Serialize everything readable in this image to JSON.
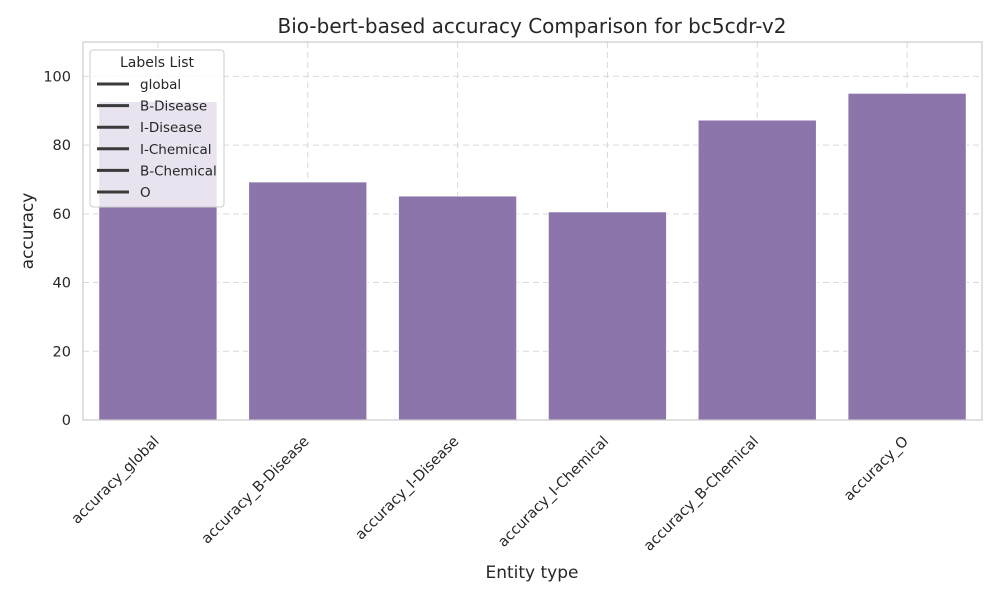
{
  "chart_data": {
    "type": "bar",
    "title": "Bio-bert-based  accuracy Comparison for bc5cdr-v2",
    "xlabel": "Entity type",
    "ylabel": "accuracy",
    "categories": [
      "accuracy_global",
      "accuracy_B-Disease",
      "accuracy_I-Disease",
      "accuracy_I-Chemical",
      "accuracy_B-Chemical",
      "accuracy_O"
    ],
    "values": [
      92.7,
      69.3,
      65.2,
      60.6,
      87.3,
      95.1
    ],
    "ylim": [
      0,
      110
    ],
    "yticks": [
      0,
      20,
      40,
      60,
      80,
      100
    ],
    "grid": true,
    "legend": {
      "title": "Labels List",
      "placement": "top-left",
      "entries": [
        "global",
        "B-Disease",
        "I-Disease",
        "I-Chemical",
        "B-Chemical",
        "O"
      ]
    },
    "colors": {
      "bar": "#8c75ab",
      "grid": "#d9d9d9",
      "axes": "#cccccc",
      "legend_line": "#3a3a3a"
    }
  }
}
